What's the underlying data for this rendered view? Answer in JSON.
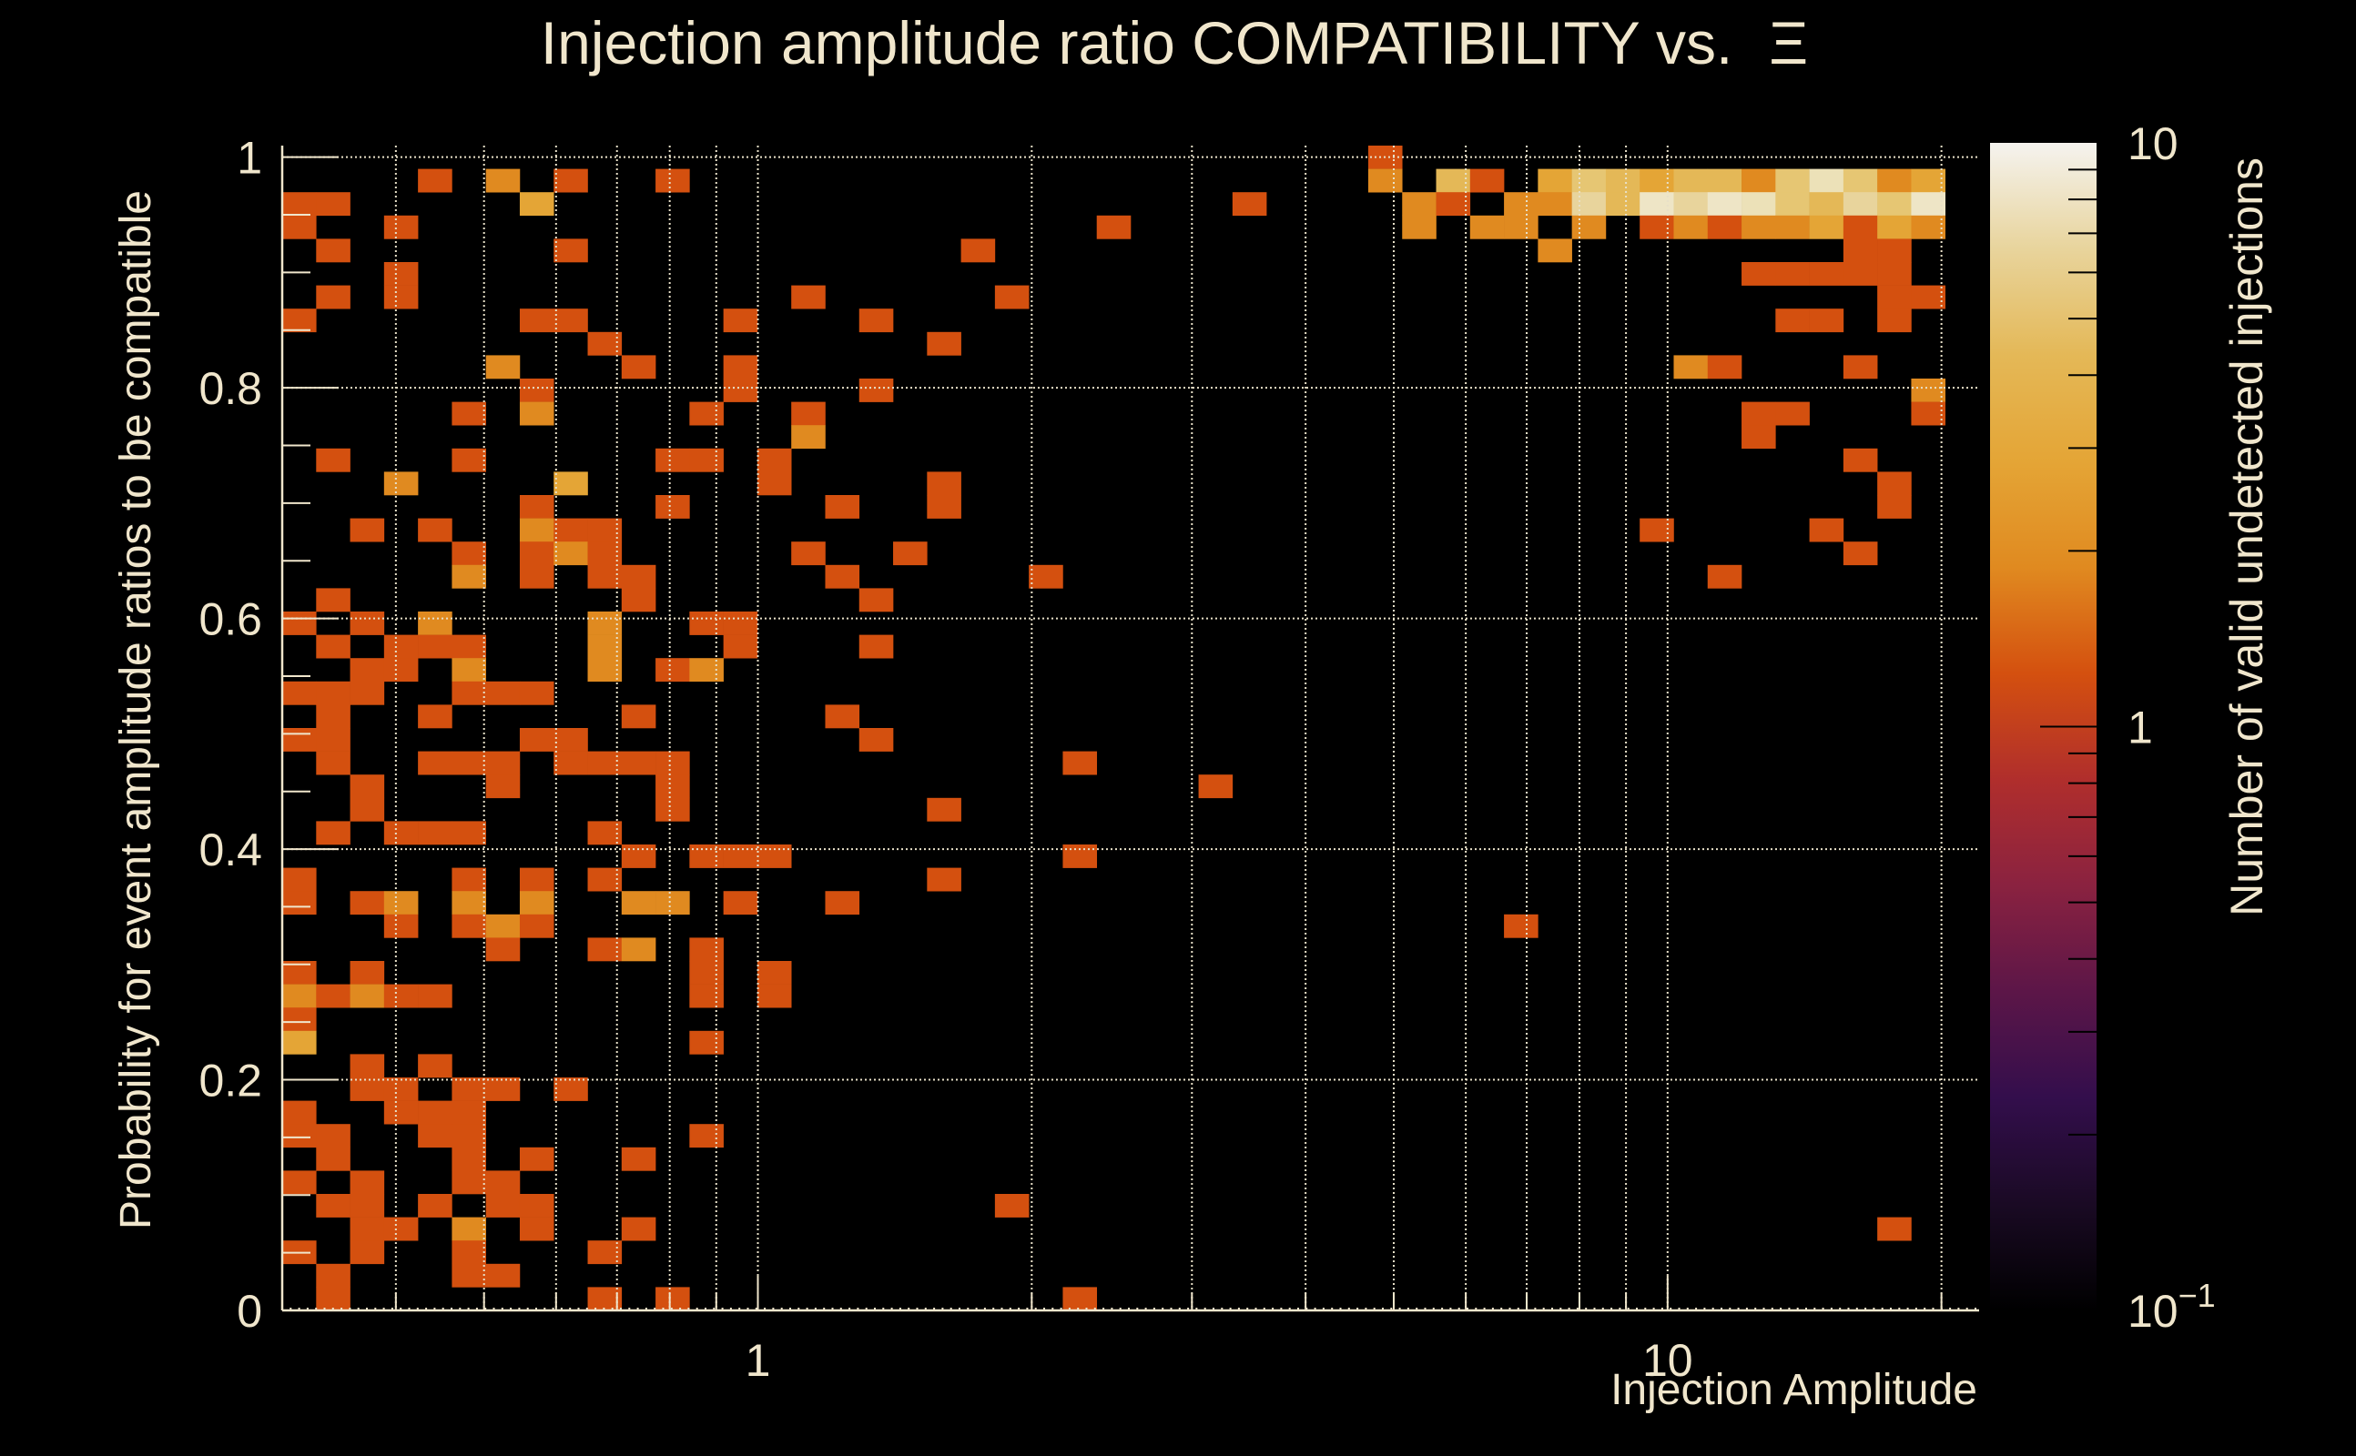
{
  "chart_data": {
    "type": "heatmap",
    "title": "Injection amplitude ratio COMPATIBILITY vs.  Ξ",
    "title_text": "Injection amplitude ratio COMPATIBILITY vs.",
    "title_symbol": "Ξ",
    "xlabel": "Injection Amplitude",
    "ylabel": "Probability for event amplitude ratios to be compatible",
    "zlabel": "Number of valid undetected injections",
    "x_scale": "log",
    "xlim": [
      0.3,
      22
    ],
    "x_bins": 50,
    "ylim": [
      0,
      1.01
    ],
    "y_bins": 50,
    "z_scale": "log",
    "zlim": [
      0.1,
      10
    ],
    "grid": true,
    "x_ticks": [
      {
        "value": 1,
        "label": "1"
      },
      {
        "value": 10,
        "label": "10"
      }
    ],
    "y_ticks": [
      {
        "value": 0,
        "label": "0"
      },
      {
        "value": 0.2,
        "label": "0.2"
      },
      {
        "value": 0.4,
        "label": "0.4"
      },
      {
        "value": 0.6,
        "label": "0.6"
      },
      {
        "value": 0.8,
        "label": "0.8"
      },
      {
        "value": 1,
        "label": "1"
      }
    ],
    "z_ticks": [
      {
        "value": 10,
        "label": "10"
      },
      {
        "value": 1,
        "label": "1"
      },
      {
        "value": 0.1,
        "label": "10",
        "exponent": "−1"
      }
    ],
    "colormap": [
      "#000000",
      "#1a0a24",
      "#330e4c",
      "#5c1648",
      "#8a2240",
      "#b02e2c",
      "#d4500f",
      "#e08a20",
      "#e4a536",
      "#e4b857",
      "#e8d49c",
      "#f5f3ef"
    ],
    "legend": "colorbar-right",
    "cell_format": "[x_bin, y_bin, count]",
    "cells": [
      [
        32,
        49,
        1
      ],
      [
        4,
        48,
        1
      ],
      [
        6,
        48,
        2
      ],
      [
        8,
        48,
        1
      ],
      [
        11,
        48,
        1
      ],
      [
        32,
        48,
        2
      ],
      [
        34,
        48,
        4
      ],
      [
        35,
        48,
        1
      ],
      [
        37,
        48,
        3
      ],
      [
        38,
        48,
        5
      ],
      [
        39,
        48,
        4
      ],
      [
        40,
        48,
        3
      ],
      [
        41,
        48,
        4
      ],
      [
        42,
        48,
        4
      ],
      [
        43,
        48,
        2
      ],
      [
        44,
        48,
        5
      ],
      [
        45,
        48,
        7
      ],
      [
        46,
        48,
        5
      ],
      [
        47,
        48,
        2
      ],
      [
        48,
        48,
        3
      ],
      [
        0,
        47,
        1
      ],
      [
        1,
        47,
        1
      ],
      [
        7,
        47,
        3
      ],
      [
        28,
        47,
        1
      ],
      [
        33,
        47,
        2
      ],
      [
        34,
        47,
        1
      ],
      [
        36,
        47,
        2
      ],
      [
        37,
        47,
        2
      ],
      [
        38,
        47,
        6
      ],
      [
        39,
        47,
        4
      ],
      [
        40,
        47,
        8
      ],
      [
        41,
        47,
        6
      ],
      [
        42,
        47,
        8
      ],
      [
        43,
        47,
        7
      ],
      [
        44,
        47,
        5
      ],
      [
        45,
        47,
        4
      ],
      [
        46,
        47,
        6
      ],
      [
        47,
        47,
        5
      ],
      [
        48,
        47,
        8
      ],
      [
        0,
        46,
        1
      ],
      [
        3,
        46,
        1
      ],
      [
        24,
        46,
        1
      ],
      [
        33,
        46,
        2
      ],
      [
        35,
        46,
        2
      ],
      [
        36,
        46,
        2
      ],
      [
        38,
        46,
        2
      ],
      [
        40,
        46,
        1
      ],
      [
        41,
        46,
        2
      ],
      [
        42,
        46,
        1
      ],
      [
        43,
        46,
        2
      ],
      [
        44,
        46,
        2
      ],
      [
        45,
        46,
        3
      ],
      [
        46,
        46,
        1
      ],
      [
        47,
        46,
        3
      ],
      [
        48,
        46,
        2
      ],
      [
        1,
        45,
        1
      ],
      [
        8,
        45,
        1
      ],
      [
        20,
        45,
        1
      ],
      [
        37,
        45,
        2
      ],
      [
        46,
        45,
        1
      ],
      [
        47,
        45,
        1
      ],
      [
        3,
        44,
        1
      ],
      [
        43,
        44,
        1
      ],
      [
        44,
        44,
        1
      ],
      [
        45,
        44,
        1
      ],
      [
        46,
        44,
        1
      ],
      [
        47,
        44,
        1
      ],
      [
        1,
        43,
        1
      ],
      [
        3,
        43,
        1
      ],
      [
        15,
        43,
        1
      ],
      [
        21,
        43,
        1
      ],
      [
        47,
        43,
        1
      ],
      [
        48,
        43,
        1
      ],
      [
        0,
        42,
        1
      ],
      [
        7,
        42,
        1
      ],
      [
        8,
        42,
        1
      ],
      [
        13,
        42,
        1
      ],
      [
        17,
        42,
        1
      ],
      [
        44,
        42,
        1
      ],
      [
        45,
        42,
        1
      ],
      [
        47,
        42,
        1
      ],
      [
        9,
        41,
        1
      ],
      [
        19,
        41,
        1
      ],
      [
        6,
        40,
        2
      ],
      [
        10,
        40,
        1
      ],
      [
        13,
        40,
        1
      ],
      [
        41,
        40,
        2
      ],
      [
        42,
        40,
        1
      ],
      [
        46,
        40,
        1
      ],
      [
        7,
        39,
        1
      ],
      [
        13,
        39,
        1
      ],
      [
        17,
        39,
        1
      ],
      [
        48,
        39,
        2
      ],
      [
        5,
        38,
        1
      ],
      [
        7,
        38,
        2
      ],
      [
        12,
        38,
        1
      ],
      [
        15,
        38,
        1
      ],
      [
        43,
        38,
        1
      ],
      [
        44,
        38,
        1
      ],
      [
        48,
        38,
        1
      ],
      [
        15,
        37,
        2
      ],
      [
        43,
        37,
        1
      ],
      [
        1,
        36,
        1
      ],
      [
        5,
        36,
        1
      ],
      [
        11,
        36,
        1
      ],
      [
        12,
        36,
        1
      ],
      [
        14,
        36,
        1
      ],
      [
        46,
        36,
        1
      ],
      [
        3,
        35,
        2
      ],
      [
        8,
        35,
        3
      ],
      [
        14,
        35,
        1
      ],
      [
        19,
        35,
        1
      ],
      [
        47,
        35,
        1
      ],
      [
        7,
        34,
        1
      ],
      [
        11,
        34,
        1
      ],
      [
        16,
        34,
        1
      ],
      [
        19,
        34,
        1
      ],
      [
        47,
        34,
        1
      ],
      [
        2,
        33,
        1
      ],
      [
        4,
        33,
        1
      ],
      [
        7,
        33,
        2
      ],
      [
        8,
        33,
        1
      ],
      [
        9,
        33,
        1
      ],
      [
        40,
        33,
        1
      ],
      [
        45,
        33,
        1
      ],
      [
        5,
        32,
        1
      ],
      [
        7,
        32,
        1
      ],
      [
        8,
        32,
        2
      ],
      [
        9,
        32,
        1
      ],
      [
        15,
        32,
        1
      ],
      [
        18,
        32,
        1
      ],
      [
        46,
        32,
        1
      ],
      [
        5,
        31,
        2
      ],
      [
        7,
        31,
        1
      ],
      [
        9,
        31,
        1
      ],
      [
        10,
        31,
        1
      ],
      [
        16,
        31,
        1
      ],
      [
        22,
        31,
        1
      ],
      [
        42,
        31,
        1
      ],
      [
        1,
        30,
        1
      ],
      [
        10,
        30,
        1
      ],
      [
        17,
        30,
        1
      ],
      [
        0,
        29,
        1
      ],
      [
        2,
        29,
        1
      ],
      [
        4,
        29,
        2
      ],
      [
        9,
        29,
        2
      ],
      [
        12,
        29,
        1
      ],
      [
        13,
        29,
        1
      ],
      [
        1,
        28,
        1
      ],
      [
        3,
        28,
        1
      ],
      [
        4,
        28,
        1
      ],
      [
        5,
        28,
        1
      ],
      [
        9,
        28,
        2
      ],
      [
        13,
        28,
        1
      ],
      [
        17,
        28,
        1
      ],
      [
        2,
        27,
        1
      ],
      [
        3,
        27,
        1
      ],
      [
        5,
        27,
        2
      ],
      [
        9,
        27,
        2
      ],
      [
        11,
        27,
        1
      ],
      [
        12,
        27,
        2
      ],
      [
        0,
        26,
        1
      ],
      [
        1,
        26,
        1
      ],
      [
        2,
        26,
        1
      ],
      [
        5,
        26,
        1
      ],
      [
        6,
        26,
        1
      ],
      [
        7,
        26,
        1
      ],
      [
        1,
        25,
        1
      ],
      [
        4,
        25,
        1
      ],
      [
        10,
        25,
        1
      ],
      [
        16,
        25,
        1
      ],
      [
        0,
        24,
        1
      ],
      [
        1,
        24,
        1
      ],
      [
        7,
        24,
        1
      ],
      [
        8,
        24,
        1
      ],
      [
        17,
        24,
        1
      ],
      [
        1,
        23,
        1
      ],
      [
        4,
        23,
        1
      ],
      [
        5,
        23,
        1
      ],
      [
        6,
        23,
        1
      ],
      [
        8,
        23,
        1
      ],
      [
        9,
        23,
        1
      ],
      [
        10,
        23,
        1
      ],
      [
        11,
        23,
        1
      ],
      [
        23,
        23,
        1
      ],
      [
        2,
        22,
        1
      ],
      [
        6,
        22,
        1
      ],
      [
        11,
        22,
        1
      ],
      [
        27,
        22,
        1
      ],
      [
        2,
        21,
        1
      ],
      [
        11,
        21,
        1
      ],
      [
        19,
        21,
        1
      ],
      [
        1,
        20,
        1
      ],
      [
        3,
        20,
        1
      ],
      [
        4,
        20,
        1
      ],
      [
        5,
        20,
        1
      ],
      [
        9,
        20,
        1
      ],
      [
        10,
        19,
        1
      ],
      [
        12,
        19,
        1
      ],
      [
        13,
        19,
        1
      ],
      [
        14,
        19,
        1
      ],
      [
        23,
        19,
        1
      ],
      [
        0,
        18,
        1
      ],
      [
        5,
        18,
        1
      ],
      [
        7,
        18,
        1
      ],
      [
        9,
        18,
        1
      ],
      [
        19,
        18,
        1
      ],
      [
        0,
        17,
        1
      ],
      [
        2,
        17,
        1
      ],
      [
        3,
        17,
        2
      ],
      [
        5,
        17,
        2
      ],
      [
        7,
        17,
        2
      ],
      [
        10,
        17,
        2
      ],
      [
        11,
        17,
        2
      ],
      [
        13,
        17,
        1
      ],
      [
        16,
        17,
        1
      ],
      [
        3,
        16,
        1
      ],
      [
        5,
        16,
        1
      ],
      [
        6,
        16,
        2
      ],
      [
        7,
        16,
        1
      ],
      [
        36,
        16,
        1
      ],
      [
        6,
        15,
        1
      ],
      [
        9,
        15,
        1
      ],
      [
        10,
        15,
        2
      ],
      [
        12,
        15,
        1
      ],
      [
        0,
        14,
        1
      ],
      [
        2,
        14,
        1
      ],
      [
        12,
        14,
        1
      ],
      [
        14,
        14,
        1
      ],
      [
        0,
        13,
        2
      ],
      [
        1,
        13,
        1
      ],
      [
        2,
        13,
        2
      ],
      [
        3,
        13,
        1
      ],
      [
        4,
        13,
        1
      ],
      [
        12,
        13,
        1
      ],
      [
        14,
        13,
        1
      ],
      [
        0,
        12,
        1
      ],
      [
        0,
        11,
        3
      ],
      [
        12,
        11,
        1
      ],
      [
        2,
        10,
        1
      ],
      [
        4,
        10,
        1
      ],
      [
        2,
        9,
        1
      ],
      [
        3,
        9,
        1
      ],
      [
        5,
        9,
        1
      ],
      [
        6,
        9,
        1
      ],
      [
        8,
        9,
        1
      ],
      [
        0,
        8,
        1
      ],
      [
        3,
        8,
        1
      ],
      [
        4,
        8,
        1
      ],
      [
        5,
        8,
        1
      ],
      [
        0,
        7,
        1
      ],
      [
        1,
        7,
        1
      ],
      [
        4,
        7,
        1
      ],
      [
        5,
        7,
        1
      ],
      [
        12,
        7,
        1
      ],
      [
        1,
        6,
        1
      ],
      [
        5,
        6,
        1
      ],
      [
        7,
        6,
        1
      ],
      [
        10,
        6,
        1
      ],
      [
        0,
        5,
        1
      ],
      [
        2,
        5,
        1
      ],
      [
        5,
        5,
        1
      ],
      [
        6,
        5,
        1
      ],
      [
        1,
        4,
        1
      ],
      [
        2,
        4,
        1
      ],
      [
        4,
        4,
        1
      ],
      [
        6,
        4,
        1
      ],
      [
        7,
        4,
        1
      ],
      [
        21,
        4,
        1
      ],
      [
        2,
        3,
        1
      ],
      [
        3,
        3,
        1
      ],
      [
        5,
        3,
        2
      ],
      [
        7,
        3,
        1
      ],
      [
        10,
        3,
        1
      ],
      [
        47,
        3,
        1
      ],
      [
        0,
        2,
        1
      ],
      [
        2,
        2,
        1
      ],
      [
        5,
        2,
        1
      ],
      [
        9,
        2,
        1
      ],
      [
        1,
        1,
        1
      ],
      [
        5,
        1,
        1
      ],
      [
        6,
        1,
        1
      ],
      [
        1,
        0,
        1
      ],
      [
        9,
        0,
        1
      ],
      [
        11,
        0,
        1
      ],
      [
        23,
        0,
        1
      ]
    ]
  }
}
